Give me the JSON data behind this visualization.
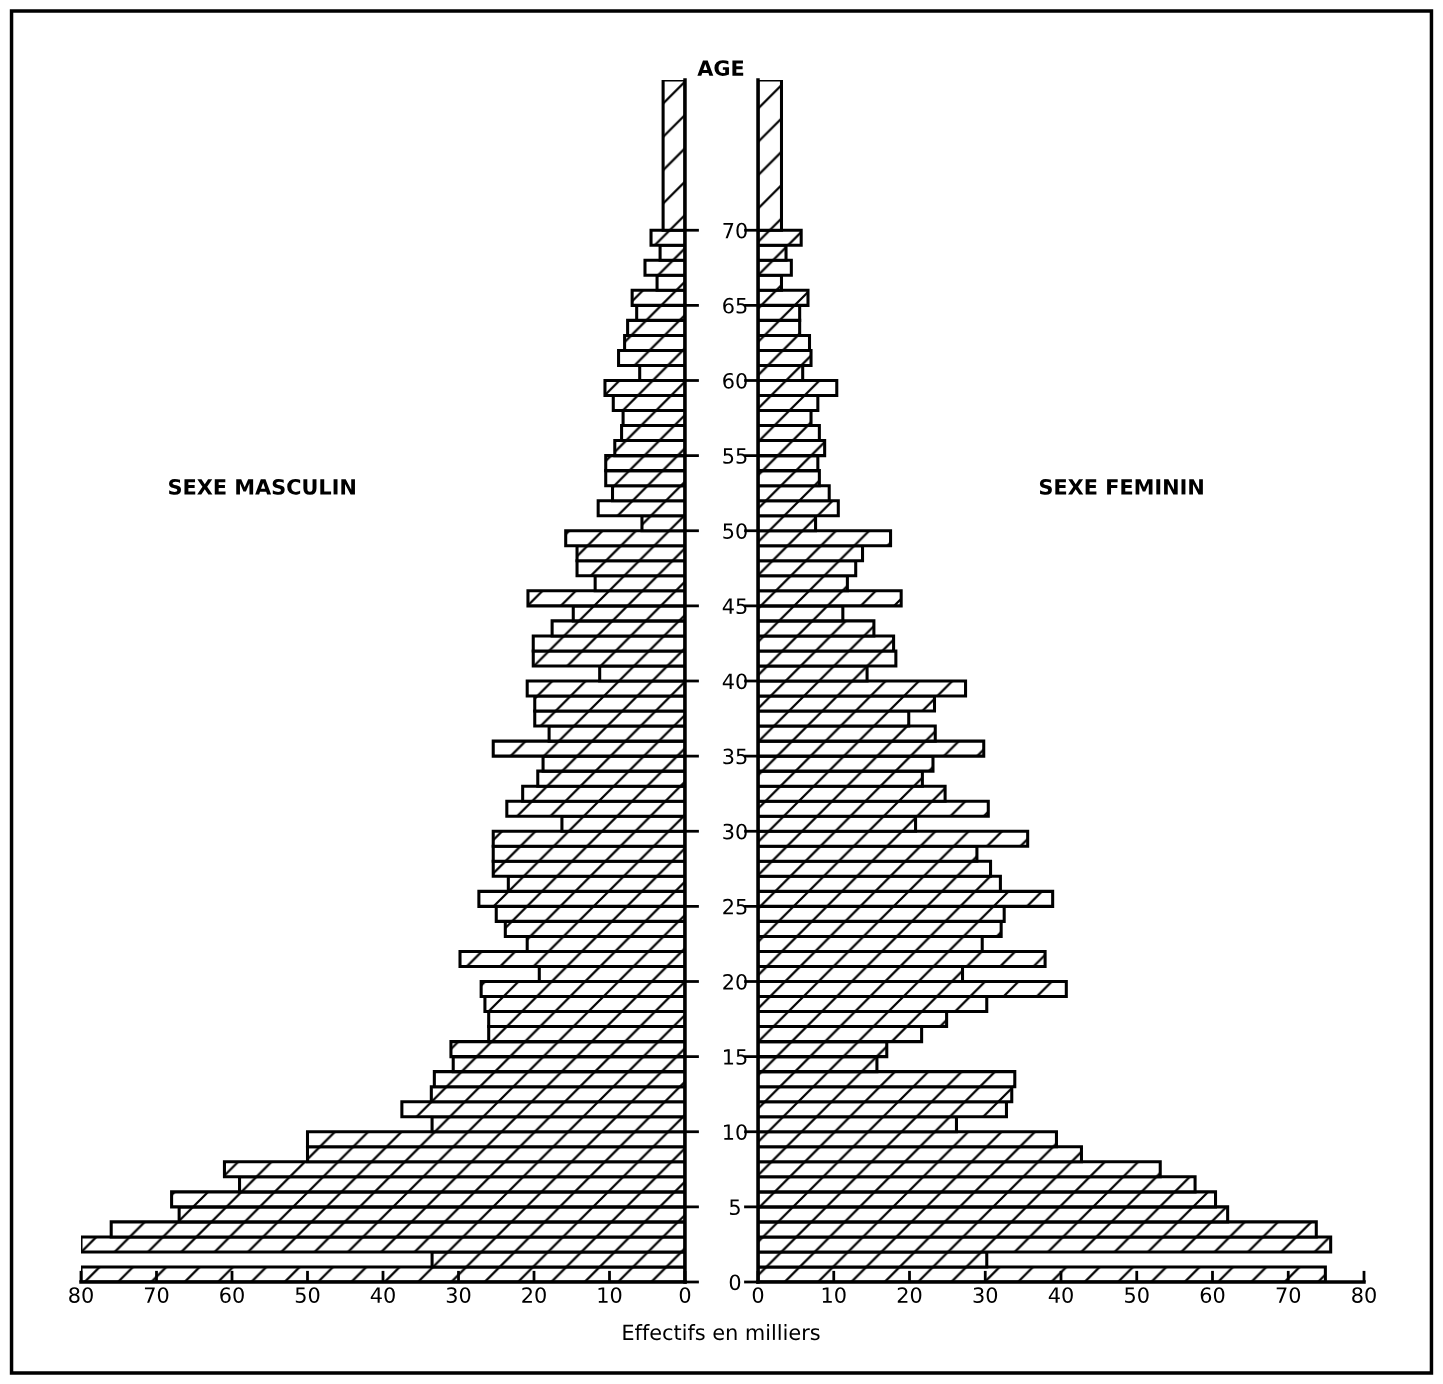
{
  "chart_data": [
    {
      "type": "histogram",
      "orientation": "horizontal",
      "title": "SEXE MASCULIN",
      "ylabel": "AGE",
      "xlabel": "Effectifs en milliers",
      "bins": [
        0,
        1,
        2,
        3,
        4,
        5,
        6,
        7,
        8,
        9,
        10,
        11,
        12,
        13,
        14,
        15,
        16,
        17,
        18,
        19,
        20,
        21,
        22,
        23,
        24,
        25,
        26,
        27,
        28,
        29,
        30,
        31,
        32,
        33,
        34,
        35,
        36,
        37,
        38,
        39,
        40,
        41,
        42,
        43,
        44,
        45,
        46,
        47,
        48,
        49,
        50,
        51,
        52,
        53,
        54,
        55,
        56,
        57,
        58,
        59,
        60,
        61,
        62,
        63,
        64,
        65,
        66,
        67,
        68,
        69,
        70,
        80
      ],
      "values": [
        80,
        33.5,
        80,
        76,
        67,
        68,
        59,
        61,
        50,
        50,
        33.5,
        37.5,
        33.6,
        33.2,
        30.7,
        31,
        26,
        26,
        26.5,
        27,
        19.3,
        29.8,
        20.9,
        23.8,
        25,
        27.3,
        23.4,
        25.4,
        25.4,
        25.4,
        16.3,
        23.6,
        21.5,
        19.5,
        18.8,
        25.4,
        18,
        19.9,
        19.9,
        20.9,
        11.3,
        20.1,
        20.1,
        17.6,
        14.8,
        20.8,
        11.9,
        14.3,
        14.3,
        15.8,
        5.7,
        11.5,
        9.6,
        10.5,
        10.5,
        9.3,
        8.4,
        8.2,
        9.5,
        10.6,
        6,
        8.8,
        8,
        7.6,
        6.4,
        7,
        3.7,
        5.3,
        3.3,
        4.5,
        2.9
      ],
      "color": "#000000",
      "xlim": [
        80,
        0
      ],
      "xticks": [
        80,
        70,
        60,
        50,
        40,
        30,
        20,
        10,
        0
      ],
      "ylim": [
        0,
        80
      ],
      "yticks": [
        0,
        5,
        10,
        15,
        20,
        25,
        30,
        35,
        40,
        45,
        50,
        55,
        60,
        65,
        70
      ]
    },
    {
      "type": "histogram",
      "orientation": "horizontal",
      "title": "SEXE FEMININ",
      "bins": [
        0,
        1,
        2,
        3,
        4,
        5,
        6,
        7,
        8,
        9,
        10,
        11,
        12,
        13,
        14,
        15,
        16,
        17,
        18,
        19,
        20,
        21,
        22,
        23,
        24,
        25,
        26,
        27,
        28,
        29,
        30,
        31,
        32,
        33,
        34,
        35,
        36,
        37,
        38,
        39,
        40,
        41,
        42,
        43,
        44,
        45,
        46,
        47,
        48,
        49,
        50,
        51,
        52,
        53,
        54,
        55,
        56,
        57,
        58,
        59,
        60,
        61,
        62,
        63,
        64,
        65,
        66,
        67,
        68,
        69,
        70,
        80
      ],
      "values": [
        74.9,
        30.2,
        75.6,
        73.7,
        62.0,
        60.4,
        57.7,
        53.1,
        42.7,
        39.4,
        26.2,
        32.8,
        33.5,
        33.9,
        15.7,
        17.0,
        21.6,
        24.9,
        30.2,
        40.7,
        27.0,
        37.9,
        29.6,
        32.1,
        32.5,
        38.9,
        32.0,
        30.7,
        28.9,
        35.6,
        20.8,
        30.4,
        24.7,
        21.7,
        23.1,
        29.8,
        23.4,
        19.9,
        23.3,
        27.4,
        14.4,
        18.2,
        17.9,
        15.3,
        11.2,
        18.9,
        11.8,
        12.9,
        13.8,
        17.5,
        7.6,
        10.6,
        9.4,
        8.1,
        7.9,
        8.8,
        8.1,
        7.0,
        7.9,
        10.4,
        5.9,
        7.0,
        6.8,
        5.5,
        5.5,
        6.6,
        3.1,
        4.4,
        3.7,
        5.7,
        3.1
      ],
      "color": "#000000",
      "xlim": [
        0,
        80
      ],
      "xticks": [
        0,
        10,
        20,
        30,
        40,
        50,
        60,
        70,
        80
      ],
      "ylim": [
        0,
        80
      ],
      "yticks": [
        0,
        5,
        10,
        15,
        20,
        25,
        30,
        35,
        40,
        45,
        50,
        55,
        60,
        65,
        70
      ],
      "tick_labels": "x"
    }
  ]
}
